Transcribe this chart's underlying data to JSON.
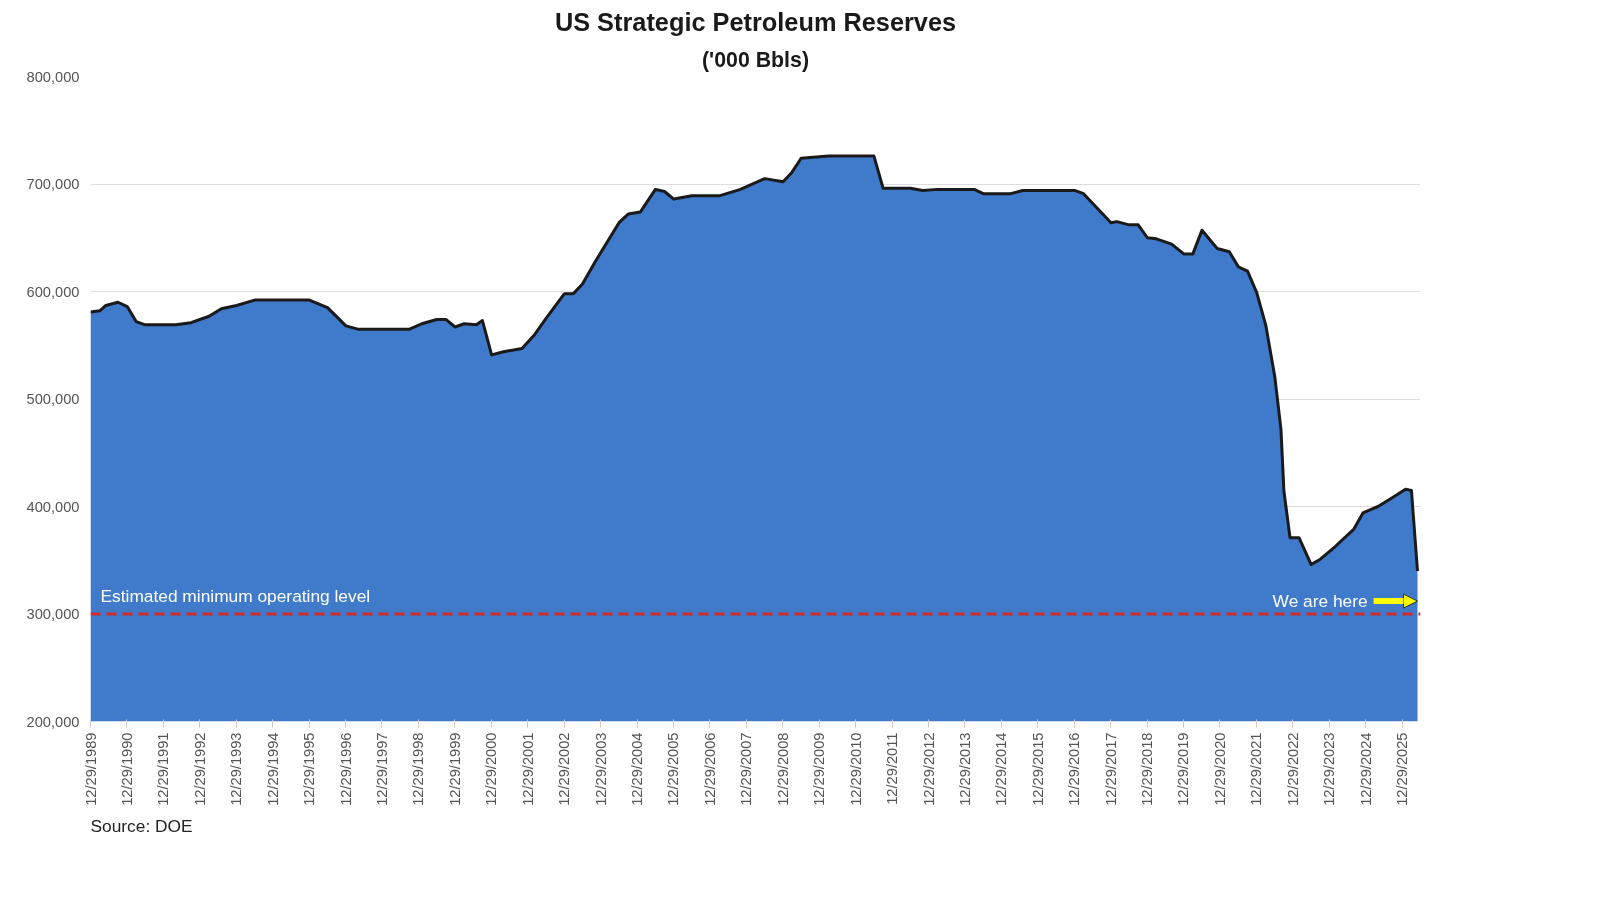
{
  "chart_data": {
    "type": "area",
    "title": "US Strategic Petroleum Reserves",
    "subtitle": "('000 Bbls)",
    "x": [
      "1989-12-29",
      "1990-04",
      "1990-06",
      "1990-10",
      "1991-01",
      "1991-04",
      "1991-07",
      "1992-05",
      "1992-10",
      "1993-04",
      "1993-08",
      "1994-01",
      "1994-07",
      "1996-01",
      "1996-07",
      "1997-01",
      "1997-05",
      "1998-10",
      "1999-02",
      "1999-07",
      "1999-10",
      "2000-01",
      "2000-04",
      "2000-08",
      "2000-10",
      "2001-01",
      "2001-05",
      "2001-11",
      "2002-03",
      "2002-07",
      "2003-01",
      "2003-04",
      "2003-07",
      "2003-11",
      "2004-07",
      "2004-10",
      "2005-02",
      "2005-07",
      "2005-10",
      "2006-01",
      "2006-07",
      "2007-04",
      "2007-11",
      "2008-07",
      "2009-01",
      "2009-04",
      "2009-07",
      "2010-04",
      "2011-07",
      "2011-10",
      "2012-07",
      "2012-11",
      "2013-04",
      "2014-04",
      "2014-07",
      "2015-04",
      "2015-08",
      "2017-01",
      "2017-04",
      "2018-01",
      "2018-03",
      "2018-07",
      "2018-10",
      "2019-01",
      "2019-04",
      "2019-09",
      "2020-01",
      "2020-04",
      "2020-07",
      "2020-12",
      "2021-04",
      "2021-07",
      "2021-10",
      "2022-01",
      "2022-04",
      "2022-07",
      "2022-09",
      "2022-10",
      "2022-12",
      "2023-03",
      "2023-07",
      "2023-10",
      "2024-03",
      "2024-09",
      "2024-12",
      "2025-05",
      "2025-09",
      "2026-02",
      "2026-04",
      "2026-06"
    ],
    "series": [
      {
        "color": "#3f7acb",
        "values": [
          581000,
          582000,
          587000,
          590000,
          586000,
          572000,
          569000,
          569000,
          571000,
          577000,
          584000,
          587000,
          592000,
          592000,
          585000,
          568000,
          565000,
          565000,
          570000,
          574000,
          574000,
          567000,
          570000,
          569000,
          573000,
          541000,
          544000,
          547000,
          559000,
          575000,
          598000,
          598000,
          607000,
          627000,
          664000,
          672000,
          674000,
          695000,
          693000,
          686000,
          689000,
          689000,
          695000,
          705000,
          702000,
          711000,
          724000,
          726000,
          726000,
          696000,
          696000,
          694000,
          695000,
          695000,
          691000,
          691000,
          694000,
          694000,
          691000,
          664000,
          665000,
          662000,
          662000,
          650000,
          649000,
          644000,
          635000,
          635000,
          657000,
          640000,
          637000,
          623000,
          619000,
          599000,
          569000,
          521000,
          472000,
          414000,
          371000,
          371000,
          346000,
          351000,
          363000,
          379000,
          394000,
          400000,
          407000,
          416000,
          415000,
          340000
        ]
      }
    ],
    "xlim": [
      "1989-12-29",
      "2026-07"
    ],
    "xticks": [
      {
        "value": "1989-12-29",
        "label": "12/29/1989"
      },
      {
        "value": "1990-12-29",
        "label": "12/29/1990"
      },
      {
        "value": "1991-12-29",
        "label": "12/29/1991"
      },
      {
        "value": "1992-12-29",
        "label": "12/29/1992"
      },
      {
        "value": "1993-12-29",
        "label": "12/29/1993"
      },
      {
        "value": "1994-12-29",
        "label": "12/29/1994"
      },
      {
        "value": "1995-12-29",
        "label": "12/29/1995"
      },
      {
        "value": "1996-12-29",
        "label": "12/29/1996"
      },
      {
        "value": "1997-12-29",
        "label": "12/29/1997"
      },
      {
        "value": "1998-12-29",
        "label": "12/29/1998"
      },
      {
        "value": "1999-12-29",
        "label": "12/29/1999"
      },
      {
        "value": "2000-12-29",
        "label": "12/29/2000"
      },
      {
        "value": "2001-12-29",
        "label": "12/29/2001"
      },
      {
        "value": "2002-12-29",
        "label": "12/29/2002"
      },
      {
        "value": "2003-12-29",
        "label": "12/29/2003"
      },
      {
        "value": "2004-12-29",
        "label": "12/29/2004"
      },
      {
        "value": "2005-12-29",
        "label": "12/29/2005"
      },
      {
        "value": "2006-12-29",
        "label": "12/29/2006"
      },
      {
        "value": "2007-12-29",
        "label": "12/29/2007"
      },
      {
        "value": "2008-12-29",
        "label": "12/29/2008"
      },
      {
        "value": "2009-12-29",
        "label": "12/29/2009"
      },
      {
        "value": "2010-12-29",
        "label": "12/29/2010"
      },
      {
        "value": "2011-12-29",
        "label": "12/29/2011"
      },
      {
        "value": "2012-12-29",
        "label": "12/29/2012"
      },
      {
        "value": "2013-12-29",
        "label": "12/29/2013"
      },
      {
        "value": "2014-12-29",
        "label": "12/29/2014"
      },
      {
        "value": "2015-12-29",
        "label": "12/29/2015"
      },
      {
        "value": "2016-12-29",
        "label": "12/29/2016"
      },
      {
        "value": "2017-12-29",
        "label": "12/29/2017"
      },
      {
        "value": "2018-12-29",
        "label": "12/29/2018"
      },
      {
        "value": "2019-12-29",
        "label": "12/29/2019"
      },
      {
        "value": "2020-12-29",
        "label": "12/29/2020"
      },
      {
        "value": "2021-12-29",
        "label": "12/29/2021"
      },
      {
        "value": "2022-12-29",
        "label": "12/29/2022"
      },
      {
        "value": "2023-12-29",
        "label": "12/29/2023"
      },
      {
        "value": "2024-12-29",
        "label": "12/29/2024"
      },
      {
        "value": "2025-12-29",
        "label": "12/29/2025"
      }
    ],
    "ylim": [
      200000,
      800000
    ],
    "yticks": [
      {
        "value": 200000,
        "label": "200,000"
      },
      {
        "value": 300000,
        "label": "300,000"
      },
      {
        "value": 400000,
        "label": "400,000"
      },
      {
        "value": 500000,
        "label": "500,000"
      },
      {
        "value": 600000,
        "label": "600,000"
      },
      {
        "value": 700000,
        "label": "700,000"
      },
      {
        "value": 800000,
        "label": "800,000"
      }
    ],
    "grid": "y",
    "ref_lines": [
      {
        "axis": "y",
        "value": 300000,
        "label": "Estimated minimum operating level",
        "color": "#d42a2a",
        "line_style": "dashed"
      }
    ],
    "annotations": [
      {
        "text": "We are here",
        "x": "2026-06",
        "y": 300000
      },
      "Source: DOE"
    ]
  }
}
